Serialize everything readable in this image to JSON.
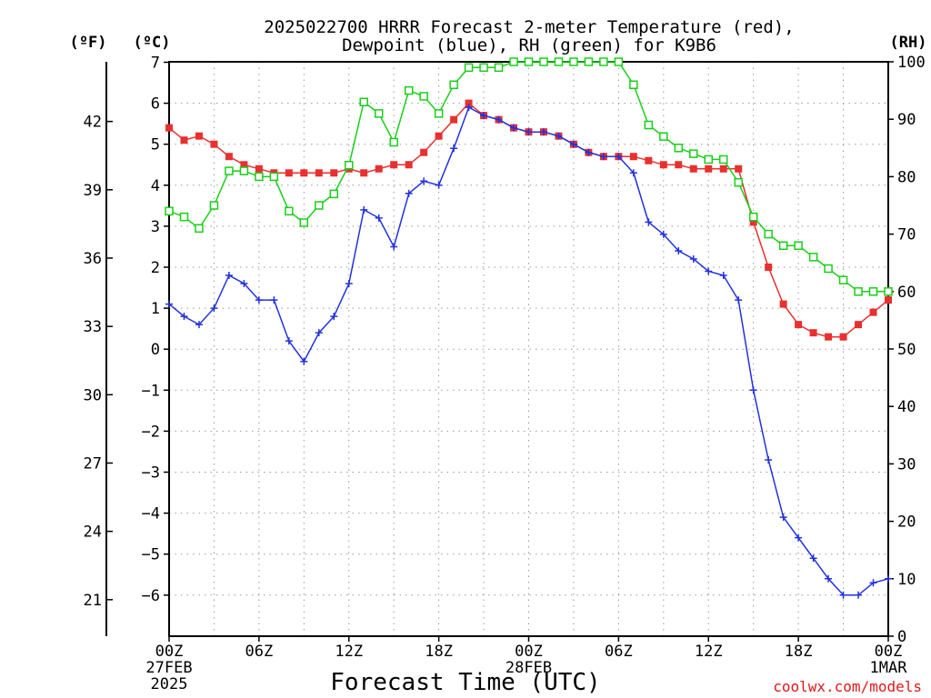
{
  "chart_data": {
    "type": "line",
    "title_lines": [
      "2025022700 HRRR Forecast 2-meter Temperature (red),",
      "Dewpoint (blue), RH (green) for K9B6"
    ],
    "xlabel": "Forecast Time (UTC)",
    "credit": "coolwx.com/models",
    "units": {
      "f": "(ºF)",
      "c": "(ºC)",
      "rh": "(RH)"
    },
    "x_hours": [
      0,
      1,
      2,
      3,
      4,
      5,
      6,
      7,
      8,
      9,
      10,
      11,
      12,
      13,
      14,
      15,
      16,
      17,
      18,
      19,
      20,
      21,
      22,
      23,
      24,
      25,
      26,
      27,
      28,
      29,
      30,
      31,
      32,
      33,
      34,
      35,
      36,
      37,
      38,
      39,
      40,
      41,
      42,
      43,
      44,
      45,
      46,
      47,
      48
    ],
    "x_ticks": [
      {
        "hour": 0,
        "lines": [
          "00Z",
          "27FEB",
          "2025"
        ]
      },
      {
        "hour": 6,
        "lines": [
          "06Z"
        ]
      },
      {
        "hour": 12,
        "lines": [
          "12Z"
        ]
      },
      {
        "hour": 18,
        "lines": [
          "18Z"
        ]
      },
      {
        "hour": 24,
        "lines": [
          "00Z",
          "28FEB"
        ]
      },
      {
        "hour": 30,
        "lines": [
          "06Z"
        ]
      },
      {
        "hour": 36,
        "lines": [
          "12Z"
        ]
      },
      {
        "hour": 42,
        "lines": [
          "18Z"
        ]
      },
      {
        "hour": 48,
        "lines": [
          "00Z",
          "1MAR"
        ]
      }
    ],
    "ylim_c": [
      -7,
      7
    ],
    "yticks_c": [
      "7",
      "6",
      "5",
      "4",
      "3",
      "2",
      "1",
      "0",
      "−1",
      "−2",
      "−3",
      "−4",
      "−5",
      "−6"
    ],
    "yticks_f": [
      "42",
      "39",
      "36",
      "33",
      "30",
      "27",
      "24",
      "21"
    ],
    "ylim_rh": [
      0,
      100
    ],
    "yticks_rh": [
      "100",
      "90",
      "80",
      "70",
      "60",
      "50",
      "40",
      "30",
      "20",
      "10",
      "0"
    ],
    "grid": true,
    "series": [
      {
        "name": "Temperature",
        "unit": "C",
        "color": "#e8302f",
        "marker": "filled-square",
        "values": [
          5.4,
          5.1,
          5.2,
          5.0,
          4.7,
          4.5,
          4.4,
          4.3,
          4.3,
          4.3,
          4.3,
          4.3,
          4.4,
          4.3,
          4.4,
          4.5,
          4.5,
          4.8,
          5.2,
          5.6,
          6.0,
          5.7,
          5.6,
          5.4,
          5.3,
          5.3,
          5.2,
          5.0,
          4.8,
          4.7,
          4.7,
          4.7,
          4.6,
          4.5,
          4.5,
          4.4,
          4.4,
          4.4,
          4.4,
          3.1,
          2.0,
          1.1,
          0.6,
          0.4,
          0.3,
          0.3,
          0.6,
          0.9,
          1.2
        ]
      },
      {
        "name": "Dewpoint",
        "unit": "C",
        "color": "#2232e0",
        "marker": "plus",
        "values": [
          1.1,
          0.8,
          0.6,
          1.0,
          1.8,
          1.6,
          1.2,
          1.2,
          0.2,
          -0.3,
          0.4,
          0.8,
          1.6,
          3.4,
          3.2,
          2.5,
          3.8,
          4.1,
          4.0,
          4.9,
          5.9,
          5.7,
          5.6,
          5.4,
          5.3,
          5.3,
          5.2,
          5.0,
          4.8,
          4.7,
          4.7,
          4.3,
          3.1,
          2.8,
          2.4,
          2.2,
          1.9,
          1.8,
          1.2,
          -1.0,
          -2.7,
          -4.1,
          -4.6,
          -5.1,
          -5.6,
          -6.0,
          -6.0,
          -5.7,
          -5.6
        ]
      },
      {
        "name": "RH",
        "unit": "%",
        "color": "#18d018",
        "marker": "open-square",
        "values": [
          74,
          73,
          71,
          75,
          81,
          81,
          80,
          80,
          74,
          72,
          75,
          77,
          82,
          93,
          91,
          86,
          95,
          94,
          91,
          96,
          99,
          99,
          99,
          100,
          100,
          100,
          100,
          100,
          100,
          100,
          100,
          96,
          89,
          87,
          85,
          84,
          83,
          83,
          79,
          73,
          70,
          68,
          68,
          66,
          64,
          62,
          60,
          60,
          60
        ]
      }
    ]
  }
}
